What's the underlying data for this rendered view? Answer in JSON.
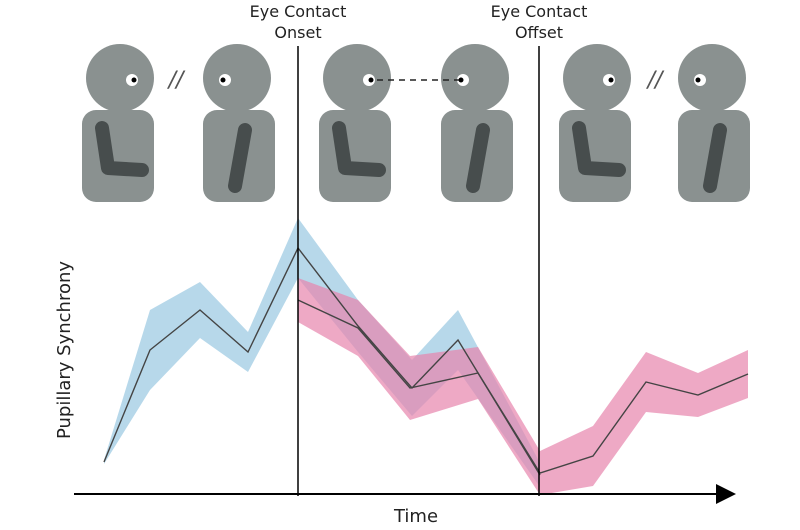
{
  "markers": [
    {
      "line1": "Eye Contact",
      "line2": "Onset"
    },
    {
      "line1": "Eye Contact",
      "line2": "Offset"
    }
  ],
  "no_contact_symbols": [
    "//",
    "//"
  ],
  "y_axis_label": "Pupillary Synchrony",
  "x_axis_label": "Time"
}
